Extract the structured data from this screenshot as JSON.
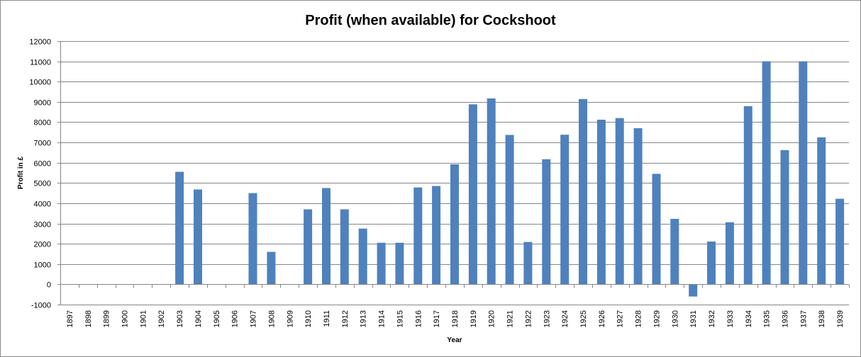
{
  "chart_data": {
    "type": "bar",
    "title": "Profit (when available) for Cockshoot",
    "xlabel": "Year",
    "ylabel": "Profit in £",
    "ylim": [
      -1000,
      12000
    ],
    "yticks": [
      -1000,
      0,
      1000,
      2000,
      3000,
      4000,
      5000,
      6000,
      7000,
      8000,
      9000,
      10000,
      11000,
      12000
    ],
    "grid": true,
    "legend": "none",
    "colors": {
      "bar": "#4f81bd",
      "grid": "#868686"
    },
    "categories": [
      "1897",
      "1898",
      "1899",
      "1900",
      "1901",
      "1902",
      "1903",
      "1904",
      "1905",
      "1906",
      "1907",
      "1908",
      "1909",
      "1910",
      "1911",
      "1912",
      "1913",
      "1914",
      "1915",
      "1916",
      "1917",
      "1918",
      "1919",
      "1920",
      "1921",
      "1922",
      "1923",
      "1924",
      "1925",
      "1926",
      "1927",
      "1928",
      "1929",
      "1930",
      "1931",
      "1932",
      "1933",
      "1934",
      "1935",
      "1936",
      "1937",
      "1938",
      "1939"
    ],
    "values": [
      null,
      null,
      null,
      null,
      null,
      null,
      5550,
      4680,
      null,
      null,
      4500,
      1600,
      null,
      3700,
      4750,
      3700,
      2750,
      2050,
      2050,
      4780,
      4850,
      5920,
      8880,
      9170,
      7370,
      2090,
      6170,
      7380,
      9140,
      8120,
      8200,
      7700,
      5450,
      3230,
      -600,
      2110,
      3060,
      8790,
      11000,
      6620,
      11000,
      7250,
      4220
    ]
  }
}
